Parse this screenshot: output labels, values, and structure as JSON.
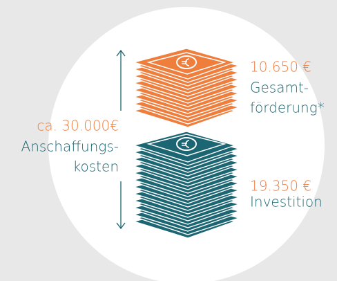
{
  "total": {
    "amount": "ca. 30.000€",
    "label_lines": [
      "Anschaffungs-",
      "kosten"
    ]
  },
  "funding": {
    "amount": "10.650 €",
    "label_lines": [
      "Gesamt-",
      "förderung*"
    ]
  },
  "investment": {
    "amount": "19.350 €",
    "label": "Investition"
  }
}
